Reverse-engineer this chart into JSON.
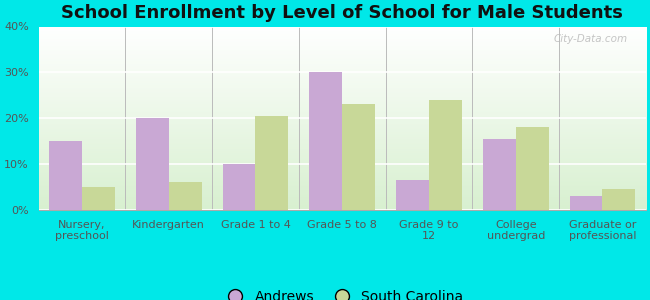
{
  "title": "School Enrollment by Level of School for Male Students",
  "categories": [
    "Nursery,\npreschool",
    "Kindergarten",
    "Grade 1 to 4",
    "Grade 5 to 8",
    "Grade 9 to\n12",
    "College\nundergrad",
    "Graduate or\nprofessional"
  ],
  "andrews_values": [
    15,
    20,
    10,
    30,
    6.5,
    15.5,
    3
  ],
  "sc_values": [
    5,
    6,
    20.5,
    23,
    24,
    18,
    4.5
  ],
  "andrews_color": "#c9a8d4",
  "sc_color": "#c8d898",
  "background_color": "#00e8e8",
  "plot_bg_color": "#e8f5e8",
  "ylim": [
    0,
    40
  ],
  "yticks": [
    0,
    10,
    20,
    30,
    40
  ],
  "ytick_labels": [
    "0%",
    "10%",
    "20%",
    "30%",
    "40%"
  ],
  "legend_labels": [
    "Andrews",
    "South Carolina"
  ],
  "bar_width": 0.38,
  "title_fontsize": 13,
  "tick_fontsize": 8,
  "legend_fontsize": 10,
  "watermark": "City-Data.com"
}
